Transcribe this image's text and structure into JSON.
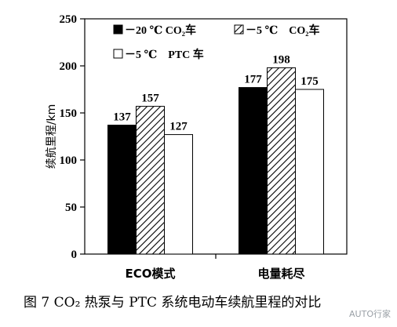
{
  "chart_data": {
    "type": "bar",
    "categories": [
      "ECO模式",
      "电量耗尽"
    ],
    "series": [
      {
        "name": "－20 ℃ CO₂车",
        "values": [
          137,
          177
        ],
        "fill": "#000000",
        "pattern": "solid"
      },
      {
        "name": "－5 ℃　CO₂车",
        "values": [
          157,
          198
        ],
        "fill": "#ffffff",
        "pattern": "hatch"
      },
      {
        "name": "－5 ℃　PTC 车",
        "values": [
          127,
          175
        ],
        "fill": "#ffffff",
        "pattern": "none"
      }
    ],
    "ylabel": "续航里程/km",
    "xlabel": "",
    "ylim": [
      0,
      250
    ],
    "yticks": [
      0,
      50,
      100,
      150,
      200,
      250
    ],
    "legend_position": "top",
    "grid": false
  },
  "caption": "图 7  CO₂ 热泵与 PTC 系统电动车续航里程的对比",
  "watermark": "AUTO行家"
}
